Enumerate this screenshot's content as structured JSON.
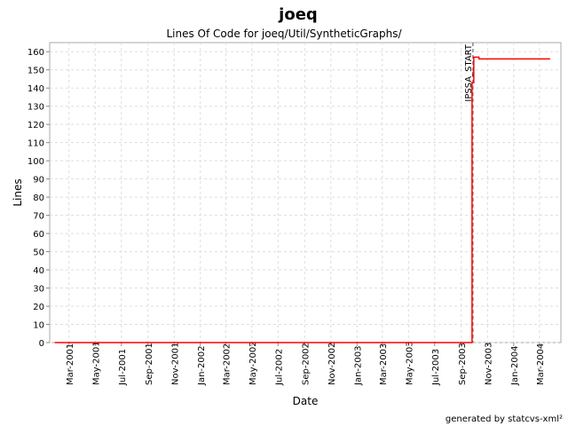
{
  "chart_data": {
    "type": "line",
    "title": "joeq",
    "subtitle": "Lines Of Code for joeq/Util/SyntheticGraphs/",
    "xlabel": "Date",
    "ylabel": "Lines",
    "footer": "generated by statcvs-xml²",
    "xlim": [
      "2001-01-15",
      "2004-04-20"
    ],
    "ylim": [
      0,
      165
    ],
    "yticks": [
      0,
      10,
      20,
      30,
      40,
      50,
      60,
      70,
      80,
      90,
      100,
      110,
      120,
      130,
      140,
      150,
      160
    ],
    "xticks": [
      {
        "label": "Mar-2001",
        "date": "2001-03-01"
      },
      {
        "label": "May-2001",
        "date": "2001-05-01"
      },
      {
        "label": "Jul-2001",
        "date": "2001-07-01"
      },
      {
        "label": "Sep-2001",
        "date": "2001-09-01"
      },
      {
        "label": "Nov-2001",
        "date": "2001-11-01"
      },
      {
        "label": "Jan-2002",
        "date": "2002-01-01"
      },
      {
        "label": "Mar-2002",
        "date": "2002-03-01"
      },
      {
        "label": "May-2002",
        "date": "2002-05-01"
      },
      {
        "label": "Jul-2002",
        "date": "2002-07-01"
      },
      {
        "label": "Sep-2002",
        "date": "2002-09-01"
      },
      {
        "label": "Nov-2002",
        "date": "2002-11-01"
      },
      {
        "label": "Jan-2003",
        "date": "2003-01-01"
      },
      {
        "label": "Mar-2003",
        "date": "2003-03-01"
      },
      {
        "label": "May-2003",
        "date": "2003-05-01"
      },
      {
        "label": "Jul-2003",
        "date": "2003-07-01"
      },
      {
        "label": "Sep-2003",
        "date": "2003-09-01"
      },
      {
        "label": "Nov-2003",
        "date": "2003-11-01"
      },
      {
        "label": "Jan-2004",
        "date": "2004-01-01"
      },
      {
        "label": "Mar-2004",
        "date": "2004-03-01"
      }
    ],
    "grid": true,
    "series": [
      {
        "color": "#ff0000",
        "step": true,
        "points": [
          {
            "x": "2001-01-27",
            "y": 0
          },
          {
            "x": "2003-09-26",
            "y": 143
          },
          {
            "x": "2003-09-30",
            "y": 157
          },
          {
            "x": "2003-10-12",
            "y": 156
          },
          {
            "x": "2004-03-26",
            "y": 156
          }
        ]
      }
    ],
    "markers": [
      {
        "label": "IPSSA_START",
        "x": "2003-09-28"
      }
    ]
  }
}
